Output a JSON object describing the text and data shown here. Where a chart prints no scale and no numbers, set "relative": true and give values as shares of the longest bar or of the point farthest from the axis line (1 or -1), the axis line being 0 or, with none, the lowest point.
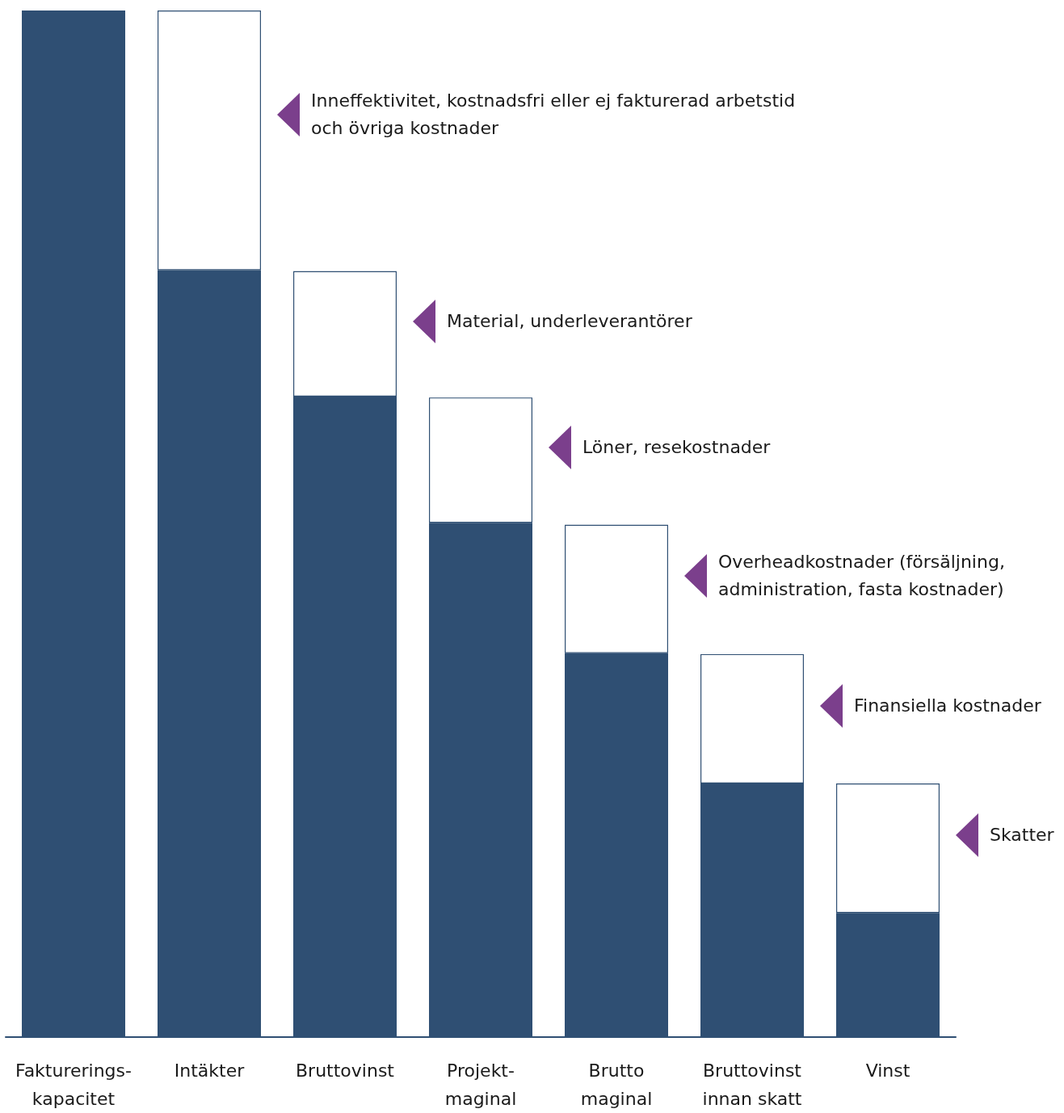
{
  "chart_data": {
    "type": "bar",
    "relative": true,
    "stacked": true,
    "categories": [
      "Fakturerings-\nkapacitet",
      "Intäkter",
      "Bruttovinst",
      "Projekt-\nmaginal",
      "Brutto\nmaginal",
      "Bruttovinst\ninnan skatt",
      "Vinst"
    ],
    "series": [
      {
        "color": "#2f4f73",
        "values": [
          1.0,
          0.747,
          0.624,
          0.501,
          0.374,
          0.247,
          0.121
        ]
      },
      {
        "color": "#ffffff",
        "values": [
          null,
          0.253,
          0.122,
          0.122,
          0.125,
          0.126,
          0.126
        ]
      }
    ],
    "annotations": [
      "Inneffektivitet, kostnadsfri eller ej fakturerad arbetstid\noch övriga kostnader",
      "Material, underleverantörer",
      "Löner, resekostnader",
      "Overheadkostnader (försäljning,\nadministration, fasta kostnader)",
      "Finansiella kostnader",
      "Skatter"
    ]
  }
}
